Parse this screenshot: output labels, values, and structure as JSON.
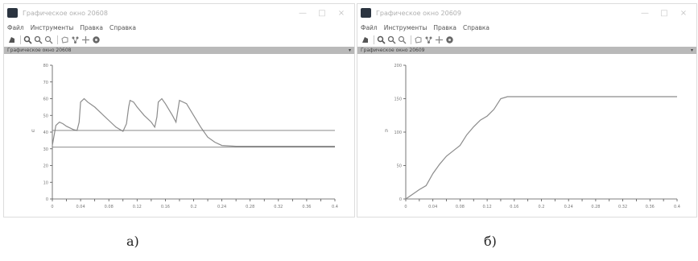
{
  "windows": [
    {
      "id": "a",
      "title": "Графическое окно 20608",
      "window_buttons": [
        "—",
        "□",
        "×"
      ],
      "menu": [
        "Файл",
        "Инструменты",
        "Правка",
        "Справка"
      ],
      "toolbar_icons": [
        "rotate-icon",
        "zoom-in-icon",
        "zoom-area-icon",
        "zoom-out-icon",
        "select-icon",
        "link-icon",
        "move-icon",
        "help-icon"
      ],
      "panel_title": "Графическое окно 20608",
      "panel_pin": "▾",
      "colors": {
        "series": "#8c8c8c",
        "axis": "#555555",
        "app_icon": "#2b3440",
        "panel_bar": "#b9b9b9"
      }
    },
    {
      "id": "b",
      "title": "Графическое окно 20609",
      "window_buttons": [
        "—",
        "□",
        "×"
      ],
      "menu": [
        "Файл",
        "Инструменты",
        "Правка",
        "Справка"
      ],
      "toolbar_icons": [
        "rotate-icon",
        "zoom-in-icon",
        "zoom-area-icon",
        "zoom-out-icon",
        "select-icon",
        "link-icon",
        "move-icon",
        "help-icon"
      ],
      "panel_title": "Графическое окно 20609",
      "panel_pin": "▾",
      "colors": {
        "series": "#8c8c8c",
        "axis": "#555555",
        "app_icon": "#2b3440",
        "panel_bar": "#b9b9b9"
      }
    }
  ],
  "captions": {
    "a": "а)",
    "b": "б)"
  },
  "chart_data": [
    {
      "type": "line",
      "ylabel": "u",
      "xlim": [
        0,
        0.4
      ],
      "ylim": [
        0,
        80
      ],
      "xticks": [
        "0",
        "0.02",
        "0.04",
        "0.06",
        "0.08",
        "0.1",
        "0.12",
        "0.14",
        "0.16",
        "0.18",
        "0.2",
        "0.22",
        "0.24",
        "0.26",
        "0.28",
        "0.3",
        "0.32",
        "0.34",
        "0.36",
        "0.38",
        "0.4"
      ],
      "yticks": [
        "0",
        "10",
        "20",
        "30",
        "40",
        "50",
        "60",
        "70",
        "80"
      ],
      "series": [
        {
          "x": [
            0,
            0.005,
            0.01,
            0.015,
            0.02,
            0.025,
            0.03,
            0.035,
            0.038,
            0.04,
            0.045,
            0.05,
            0.06,
            0.07,
            0.08,
            0.09,
            0.1,
            0.105,
            0.108,
            0.11,
            0.115,
            0.12,
            0.13,
            0.14,
            0.145,
            0.148,
            0.15,
            0.155,
            0.16,
            0.17,
            0.175,
            0.18,
            0.19,
            0.2,
            0.21,
            0.22,
            0.23,
            0.24,
            0.26,
            0.28,
            0.3,
            0.32,
            0.34,
            0.36,
            0.38,
            0.4
          ],
          "y": [
            32,
            44,
            46,
            45,
            43.5,
            42.5,
            41.5,
            41,
            46,
            58,
            60,
            58,
            55,
            51,
            47,
            43,
            40.5,
            45,
            55,
            59,
            58,
            55,
            50,
            46,
            43,
            49,
            58,
            60,
            57,
            50,
            46,
            59,
            57,
            50,
            43,
            37,
            34,
            32,
            31.5,
            31.5,
            31.5,
            31.5,
            31.5,
            31.5,
            31.5,
            31.5
          ]
        },
        {
          "x": [
            0,
            0.4
          ],
          "y": [
            41,
            41
          ]
        },
        {
          "x": [
            0,
            0.4
          ],
          "y": [
            31,
            31
          ]
        }
      ]
    },
    {
      "type": "line",
      "ylabel": "n",
      "xlim": [
        0,
        0.4
      ],
      "ylim": [
        0,
        200
      ],
      "xticks": [
        "0",
        "0.02",
        "0.04",
        "0.06",
        "0.08",
        "0.1",
        "0.12",
        "0.14",
        "0.16",
        "0.18",
        "0.2",
        "0.22",
        "0.24",
        "0.26",
        "0.28",
        "0.3",
        "0.32",
        "0.34",
        "0.36",
        "0.38",
        "0.4"
      ],
      "yticks": [
        "0",
        "50",
        "100",
        "150",
        "200"
      ],
      "series": [
        {
          "x": [
            0,
            0.01,
            0.02,
            0.03,
            0.04,
            0.05,
            0.06,
            0.07,
            0.08,
            0.09,
            0.1,
            0.11,
            0.12,
            0.13,
            0.14,
            0.15,
            0.16,
            0.17,
            0.18,
            0.19,
            0.2,
            0.4
          ],
          "y": [
            0,
            7,
            14,
            20,
            38,
            52,
            64,
            72,
            80,
            96,
            108,
            118,
            124,
            134,
            150,
            153,
            153,
            153,
            153,
            153,
            153,
            153
          ]
        }
      ]
    }
  ]
}
